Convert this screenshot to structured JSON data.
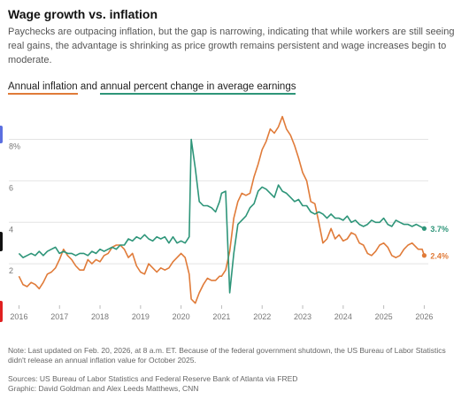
{
  "title": "Wage growth vs. inflation",
  "subtitle": "Paychecks are outpacing inflation, but the gap is narrowing, indicating that while workers are still seeing real gains, the advantage is shrinking as price growth remains persistent and wage increases begin to moderate.",
  "legend": {
    "series1": "Annual inflation",
    "connector": "and",
    "series2": "annual percent change in average earnings"
  },
  "notes": {
    "note": "Note: Last updated on Feb. 20, 2026, at 8 a.m. ET. Because of the federal government shutdown, the US Bureau of Labor Statistics didn't release an annual inflation value for October 2025.",
    "sources": "Sources: US Bureau of Labor Statistics and Federal Reserve Bank of Atlanta via FRED",
    "graphic": "Graphic: David Goldman and Alex Leeds Matthews, CNN"
  },
  "colors": {
    "inflation": "#e07b39",
    "earnings": "#2e9579",
    "grid": "#e4e4e4"
  },
  "chart_data": {
    "type": "line",
    "xlim": [
      2015.75,
      2026.1
    ],
    "ylim": [
      0,
      9.6
    ],
    "x_ticks": [
      2016,
      2017,
      2018,
      2019,
      2020,
      2021,
      2022,
      2023,
      2024,
      2025,
      2026
    ],
    "x_tick_labels": [
      "2016",
      "2017",
      "2018",
      "2019",
      "2020",
      "2021",
      "2022",
      "2023",
      "2024",
      "2025",
      "2026"
    ],
    "y_ticks": [
      2,
      4,
      6,
      8
    ],
    "y_tick_labels": [
      "2",
      "4",
      "6",
      "8%"
    ],
    "grid": true,
    "series": [
      {
        "key": "inflation",
        "name": "Annual inflation",
        "end_label": "2.4%",
        "points": [
          [
            2016.0,
            1.4
          ],
          [
            2016.1,
            1.0
          ],
          [
            2016.2,
            0.9
          ],
          [
            2016.3,
            1.1
          ],
          [
            2016.4,
            1.0
          ],
          [
            2016.5,
            0.8
          ],
          [
            2016.6,
            1.1
          ],
          [
            2016.7,
            1.5
          ],
          [
            2016.8,
            1.6
          ],
          [
            2016.9,
            1.8
          ],
          [
            2017.0,
            2.2
          ],
          [
            2017.1,
            2.7
          ],
          [
            2017.2,
            2.4
          ],
          [
            2017.3,
            2.2
          ],
          [
            2017.4,
            1.9
          ],
          [
            2017.5,
            1.7
          ],
          [
            2017.6,
            1.7
          ],
          [
            2017.7,
            2.2
          ],
          [
            2017.8,
            2.0
          ],
          [
            2017.9,
            2.2
          ],
          [
            2018.0,
            2.1
          ],
          [
            2018.1,
            2.4
          ],
          [
            2018.2,
            2.5
          ],
          [
            2018.3,
            2.8
          ],
          [
            2018.4,
            2.9
          ],
          [
            2018.5,
            2.9
          ],
          [
            2018.6,
            2.7
          ],
          [
            2018.7,
            2.3
          ],
          [
            2018.8,
            2.5
          ],
          [
            2018.9,
            1.9
          ],
          [
            2019.0,
            1.6
          ],
          [
            2019.1,
            1.5
          ],
          [
            2019.2,
            2.0
          ],
          [
            2019.3,
            1.8
          ],
          [
            2019.4,
            1.6
          ],
          [
            2019.5,
            1.8
          ],
          [
            2019.6,
            1.7
          ],
          [
            2019.7,
            1.8
          ],
          [
            2019.8,
            2.1
          ],
          [
            2019.9,
            2.3
          ],
          [
            2020.0,
            2.5
          ],
          [
            2020.1,
            2.3
          ],
          [
            2020.2,
            1.5
          ],
          [
            2020.25,
            0.3
          ],
          [
            2020.35,
            0.1
          ],
          [
            2020.45,
            0.6
          ],
          [
            2020.55,
            1.0
          ],
          [
            2020.65,
            1.3
          ],
          [
            2020.75,
            1.2
          ],
          [
            2020.85,
            1.2
          ],
          [
            2020.95,
            1.4
          ],
          [
            2021.0,
            1.4
          ],
          [
            2021.1,
            1.7
          ],
          [
            2021.2,
            2.6
          ],
          [
            2021.3,
            4.2
          ],
          [
            2021.4,
            5.0
          ],
          [
            2021.5,
            5.4
          ],
          [
            2021.6,
            5.3
          ],
          [
            2021.7,
            5.4
          ],
          [
            2021.8,
            6.2
          ],
          [
            2021.9,
            6.8
          ],
          [
            2022.0,
            7.5
          ],
          [
            2022.1,
            7.9
          ],
          [
            2022.2,
            8.5
          ],
          [
            2022.3,
            8.3
          ],
          [
            2022.4,
            8.6
          ],
          [
            2022.5,
            9.1
          ],
          [
            2022.6,
            8.5
          ],
          [
            2022.7,
            8.2
          ],
          [
            2022.8,
            7.7
          ],
          [
            2022.9,
            7.1
          ],
          [
            2023.0,
            6.4
          ],
          [
            2023.1,
            6.0
          ],
          [
            2023.2,
            5.0
          ],
          [
            2023.3,
            4.9
          ],
          [
            2023.4,
            4.0
          ],
          [
            2023.5,
            3.0
          ],
          [
            2023.6,
            3.2
          ],
          [
            2023.7,
            3.7
          ],
          [
            2023.8,
            3.2
          ],
          [
            2023.9,
            3.4
          ],
          [
            2024.0,
            3.1
          ],
          [
            2024.1,
            3.2
          ],
          [
            2024.2,
            3.5
          ],
          [
            2024.3,
            3.4
          ],
          [
            2024.4,
            3.0
          ],
          [
            2024.5,
            2.9
          ],
          [
            2024.6,
            2.5
          ],
          [
            2024.7,
            2.4
          ],
          [
            2024.8,
            2.6
          ],
          [
            2024.9,
            2.9
          ],
          [
            2025.0,
            3.0
          ],
          [
            2025.1,
            2.8
          ],
          [
            2025.2,
            2.4
          ],
          [
            2025.3,
            2.3
          ],
          [
            2025.4,
            2.4
          ],
          [
            2025.5,
            2.7
          ],
          [
            2025.6,
            2.9
          ],
          [
            2025.7,
            3.0
          ],
          [
            2025.85,
            2.7
          ],
          [
            2025.95,
            2.7
          ],
          [
            2026.0,
            2.4
          ]
        ]
      },
      {
        "key": "earnings",
        "name": "annual percent change in average earnings",
        "end_label": "3.7%",
        "points": [
          [
            2016.0,
            2.5
          ],
          [
            2016.1,
            2.3
          ],
          [
            2016.2,
            2.4
          ],
          [
            2016.3,
            2.5
          ],
          [
            2016.4,
            2.4
          ],
          [
            2016.5,
            2.6
          ],
          [
            2016.6,
            2.4
          ],
          [
            2016.7,
            2.6
          ],
          [
            2016.8,
            2.7
          ],
          [
            2016.9,
            2.8
          ],
          [
            2017.0,
            2.5
          ],
          [
            2017.1,
            2.6
          ],
          [
            2017.2,
            2.5
          ],
          [
            2017.3,
            2.5
          ],
          [
            2017.4,
            2.4
          ],
          [
            2017.5,
            2.5
          ],
          [
            2017.6,
            2.5
          ],
          [
            2017.7,
            2.4
          ],
          [
            2017.8,
            2.6
          ],
          [
            2017.9,
            2.5
          ],
          [
            2018.0,
            2.7
          ],
          [
            2018.1,
            2.6
          ],
          [
            2018.2,
            2.7
          ],
          [
            2018.3,
            2.8
          ],
          [
            2018.4,
            2.7
          ],
          [
            2018.5,
            2.9
          ],
          [
            2018.6,
            2.9
          ],
          [
            2018.7,
            3.2
          ],
          [
            2018.8,
            3.1
          ],
          [
            2018.9,
            3.3
          ],
          [
            2019.0,
            3.2
          ],
          [
            2019.1,
            3.4
          ],
          [
            2019.2,
            3.2
          ],
          [
            2019.3,
            3.1
          ],
          [
            2019.4,
            3.3
          ],
          [
            2019.5,
            3.2
          ],
          [
            2019.6,
            3.3
          ],
          [
            2019.7,
            3.0
          ],
          [
            2019.8,
            3.3
          ],
          [
            2019.9,
            3.0
          ],
          [
            2020.0,
            3.1
          ],
          [
            2020.1,
            3.0
          ],
          [
            2020.2,
            3.3
          ],
          [
            2020.25,
            8.0
          ],
          [
            2020.35,
            6.6
          ],
          [
            2020.45,
            5.0
          ],
          [
            2020.55,
            4.8
          ],
          [
            2020.65,
            4.8
          ],
          [
            2020.75,
            4.7
          ],
          [
            2020.85,
            4.5
          ],
          [
            2020.95,
            5.0
          ],
          [
            2021.0,
            5.4
          ],
          [
            2021.1,
            5.5
          ],
          [
            2021.2,
            0.6
          ],
          [
            2021.3,
            2.5
          ],
          [
            2021.4,
            3.9
          ],
          [
            2021.5,
            4.1
          ],
          [
            2021.6,
            4.3
          ],
          [
            2021.7,
            4.7
          ],
          [
            2021.8,
            4.9
          ],
          [
            2021.9,
            5.5
          ],
          [
            2022.0,
            5.7
          ],
          [
            2022.1,
            5.6
          ],
          [
            2022.2,
            5.4
          ],
          [
            2022.3,
            5.2
          ],
          [
            2022.4,
            5.8
          ],
          [
            2022.5,
            5.5
          ],
          [
            2022.6,
            5.4
          ],
          [
            2022.7,
            5.2
          ],
          [
            2022.8,
            5.0
          ],
          [
            2022.9,
            5.1
          ],
          [
            2023.0,
            4.8
          ],
          [
            2023.1,
            4.8
          ],
          [
            2023.2,
            4.5
          ],
          [
            2023.3,
            4.4
          ],
          [
            2023.4,
            4.5
          ],
          [
            2023.5,
            4.4
          ],
          [
            2023.6,
            4.2
          ],
          [
            2023.7,
            4.4
          ],
          [
            2023.8,
            4.2
          ],
          [
            2023.9,
            4.2
          ],
          [
            2024.0,
            4.1
          ],
          [
            2024.1,
            4.3
          ],
          [
            2024.2,
            4.0
          ],
          [
            2024.3,
            4.1
          ],
          [
            2024.4,
            3.9
          ],
          [
            2024.5,
            3.8
          ],
          [
            2024.6,
            3.9
          ],
          [
            2024.7,
            4.1
          ],
          [
            2024.8,
            4.0
          ],
          [
            2024.9,
            4.0
          ],
          [
            2025.0,
            4.2
          ],
          [
            2025.1,
            3.9
          ],
          [
            2025.2,
            3.8
          ],
          [
            2025.3,
            4.1
          ],
          [
            2025.4,
            4.0
          ],
          [
            2025.5,
            3.9
          ],
          [
            2025.6,
            3.9
          ],
          [
            2025.7,
            3.8
          ],
          [
            2025.8,
            3.9
          ],
          [
            2025.9,
            3.8
          ],
          [
            2026.0,
            3.7
          ]
        ]
      }
    ]
  }
}
